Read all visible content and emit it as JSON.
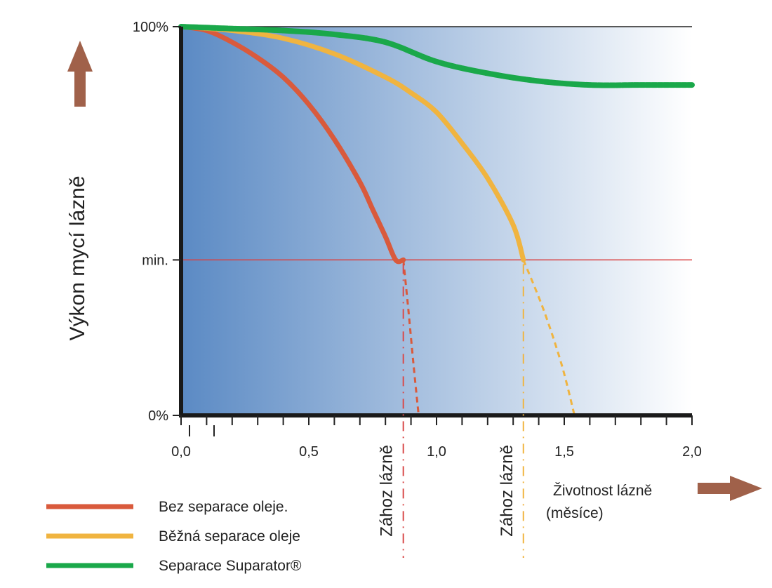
{
  "chart_data": {
    "type": "line",
    "ylabel": "Výkon mycí lázně",
    "xlabel_line1": "Životnost lázně",
    "xlabel_line2": "(měsíce)",
    "xlim": [
      0,
      2.0
    ],
    "ylim": [
      0,
      100
    ],
    "x_ticks": [
      {
        "value": 0.0,
        "label": "0,0"
      },
      {
        "value": 0.5,
        "label": "0,5"
      },
      {
        "value": 1.0,
        "label": "1,0"
      },
      {
        "value": 1.5,
        "label": "1,5"
      },
      {
        "value": 2.0,
        "label": "2,0"
      }
    ],
    "y_ticks": [
      {
        "value": 100,
        "label": "100%"
      },
      {
        "value": 40,
        "label": "min."
      },
      {
        "value": 0,
        "label": "0%"
      }
    ],
    "min_level": 40,
    "series": [
      {
        "name": "Bez separace oleje.",
        "color": "#d95a3c",
        "x": [
          0.0,
          0.1,
          0.2,
          0.3,
          0.4,
          0.5,
          0.6,
          0.7,
          0.75,
          0.8,
          0.84,
          0.87
        ],
        "y": [
          100,
          99,
          96,
          92,
          87,
          80,
          71,
          60,
          53,
          46,
          40,
          40
        ],
        "drop_x": [
          0.87,
          0.89,
          0.91,
          0.93
        ],
        "drop_y": [
          40,
          27,
          13,
          0
        ]
      },
      {
        "name": "Běžná separace oleje",
        "color": "#f0b440",
        "x": [
          0.0,
          0.2,
          0.4,
          0.6,
          0.8,
          0.9,
          1.0,
          1.1,
          1.2,
          1.3,
          1.34
        ],
        "y": [
          100,
          99,
          97,
          93,
          87,
          83,
          78,
          70,
          61,
          49,
          40
        ],
        "drop_x": [
          1.34,
          1.42,
          1.49,
          1.54
        ],
        "drop_y": [
          40,
          27,
          13,
          0
        ]
      },
      {
        "name": "Separace Suparator®",
        "color": "#1aa84a",
        "x": [
          0.0,
          0.2,
          0.4,
          0.6,
          0.8,
          1.0,
          1.2,
          1.4,
          1.6,
          1.8,
          2.0
        ],
        "y": [
          100,
          99.5,
          99,
          98,
          96,
          91,
          88,
          86,
          85,
          85,
          85
        ]
      }
    ],
    "dump_markers": [
      {
        "x": 0.87,
        "label": "Zához lázně",
        "color": "#d94a4a"
      },
      {
        "x": 1.34,
        "label": "Zához lázně",
        "color": "#f0b440"
      }
    ],
    "legend_position": "bottom-left",
    "grid": false,
    "background_gradient": [
      "#5b8ac4",
      "#ffffff"
    ],
    "arrow_color": "#a0614a"
  }
}
